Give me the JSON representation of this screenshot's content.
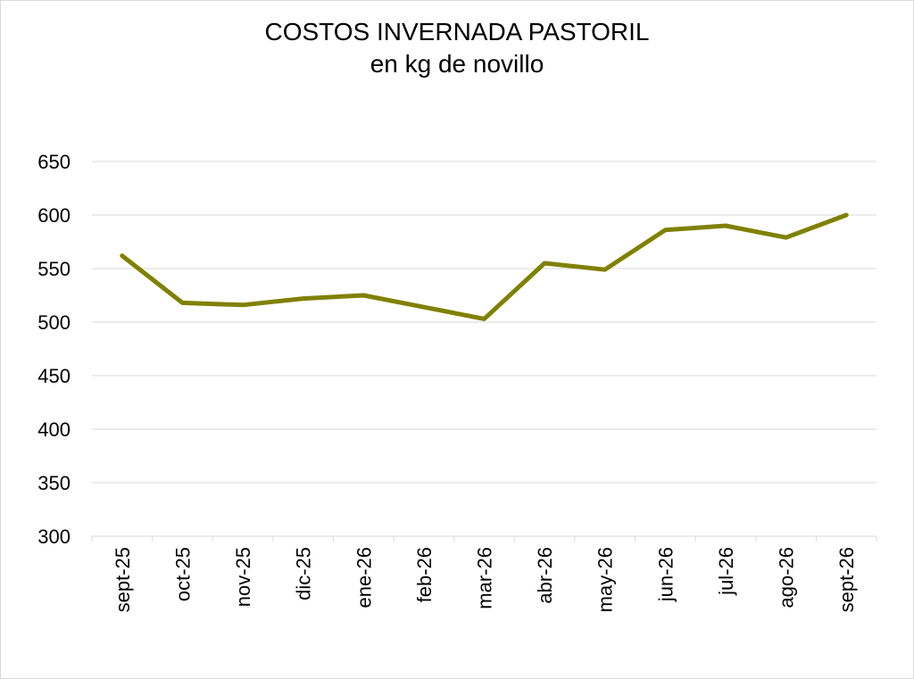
{
  "chart_data": {
    "type": "line",
    "title": "COSTOS INVERNADA PASTORIL",
    "subtitle": "en kg de novillo",
    "categories": [
      "sept-25",
      "oct-25",
      "nov-25",
      "dic-25",
      "ene-26",
      "feb-26",
      "mar-26",
      "abr-26",
      "may-26",
      "jun-26",
      "jul-26",
      "ago-26",
      "sept-26"
    ],
    "series": [
      {
        "values": [
          562,
          518,
          516,
          522,
          525,
          514,
          503,
          555,
          549,
          586,
          590,
          579,
          600
        ],
        "color": "#808000"
      }
    ],
    "ylim": [
      300,
      650
    ],
    "yticks": [
      300,
      350,
      400,
      450,
      500,
      550,
      600,
      650
    ],
    "grid": true,
    "legend": "none",
    "gridline_color": "#d9d9d9"
  }
}
